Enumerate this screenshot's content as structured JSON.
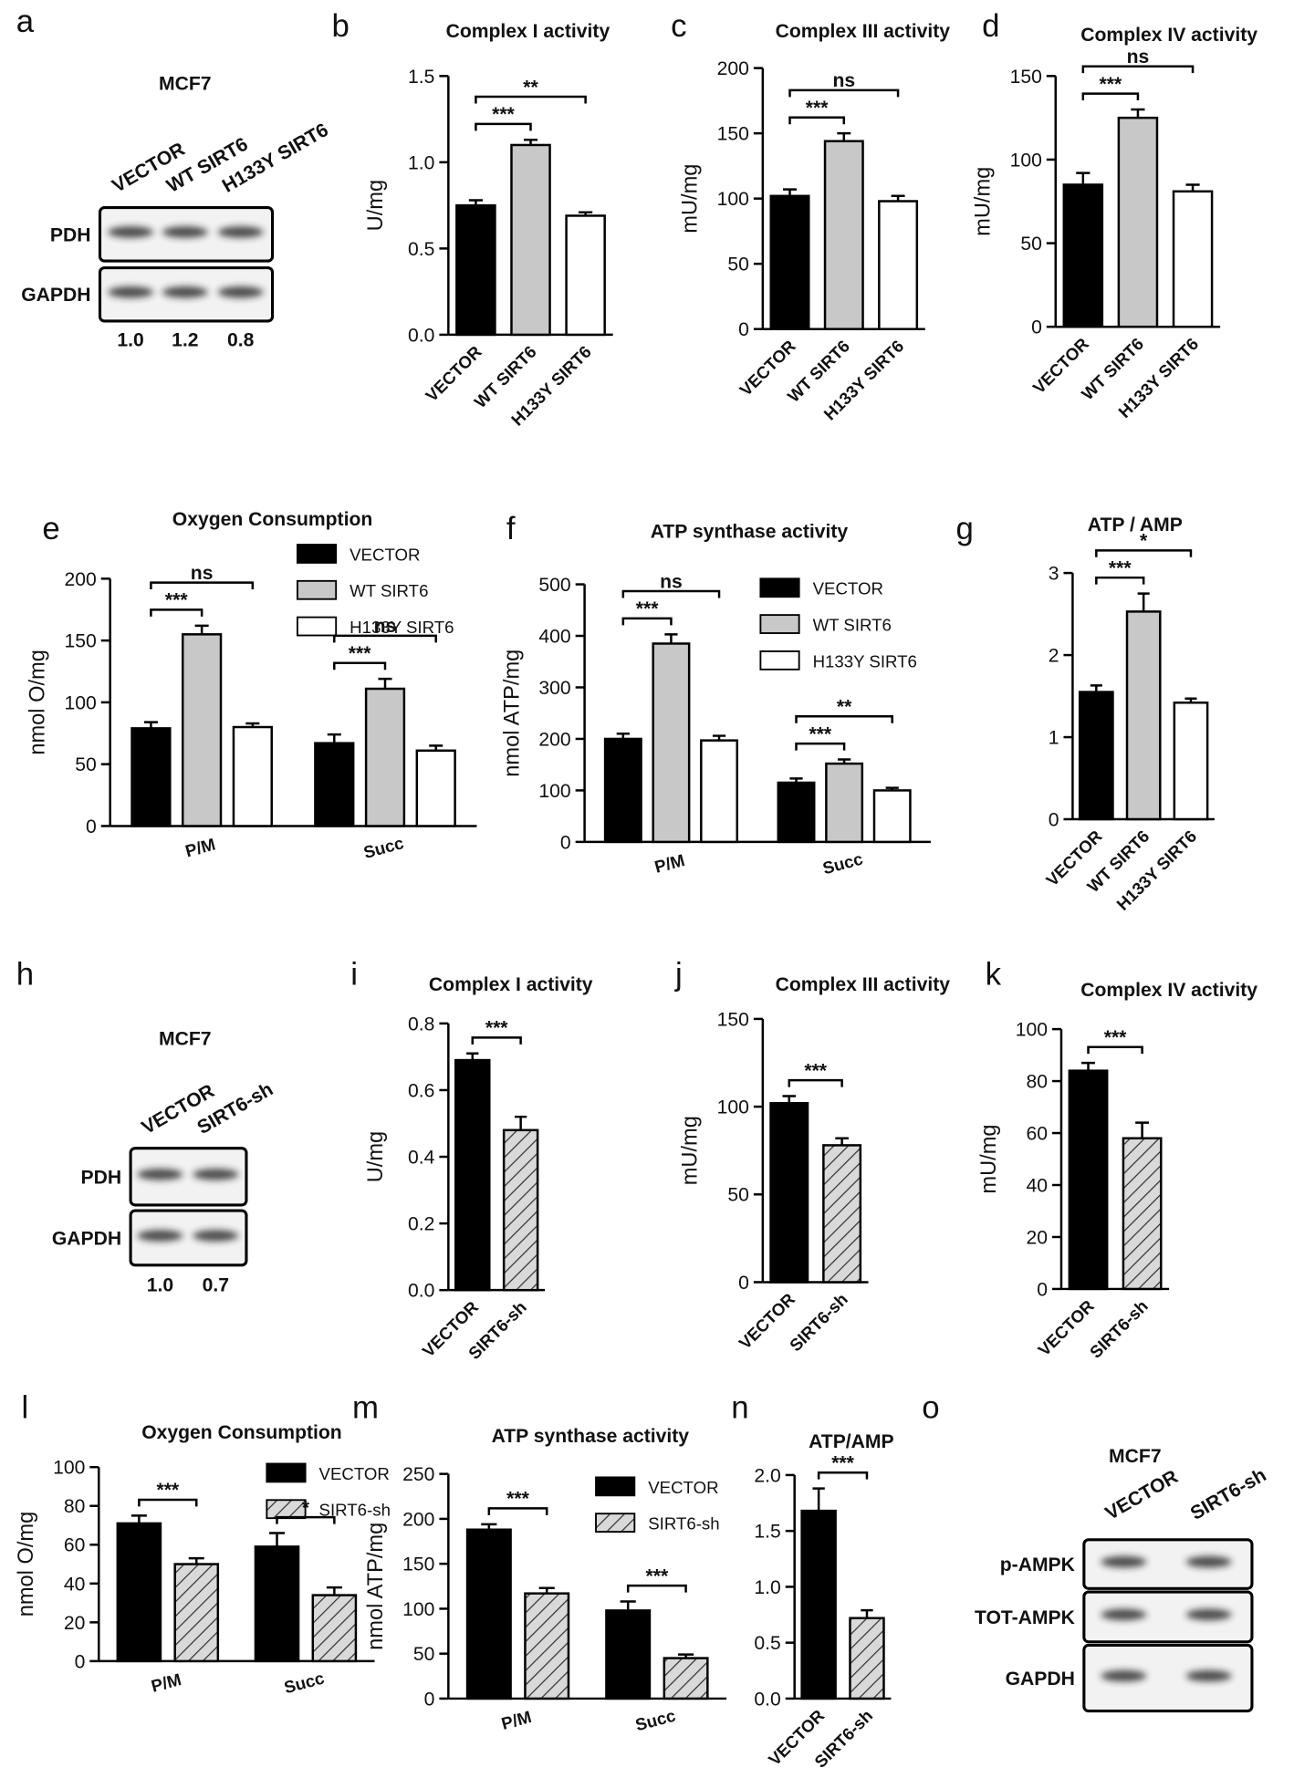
{
  "blots": [
    {
      "panel": "a",
      "title": "MCF7",
      "lanes": [
        "VECTOR",
        "WT SIRT6",
        "H133Y SIRT6"
      ],
      "rows": [
        "PDH",
        "GAPDH"
      ],
      "quantification": [
        "1.0",
        "1.2",
        "0.8"
      ]
    },
    {
      "panel": "h",
      "title": "MCF7",
      "lanes": [
        "VECTOR",
        "SIRT6-sh"
      ],
      "rows": [
        "PDH",
        "GAPDH"
      ],
      "quantification": [
        "1.0",
        "0.7"
      ]
    },
    {
      "panel": "o",
      "title": "MCF7",
      "lanes": [
        "VECTOR",
        "SIRT6-sh"
      ],
      "rows": [
        "p-AMPK",
        "TOT-AMPK",
        "GAPDH"
      ]
    }
  ],
  "chart_data": [
    {
      "panel": "b",
      "type": "bar",
      "title": "Complex I activity",
      "y_label": "U/mg",
      "categories": [
        "VECTOR",
        "WT SIRT6",
        "H133Y SIRT6"
      ],
      "values": [
        0.75,
        1.1,
        0.69
      ],
      "errors": [
        0.03,
        0.03,
        0.02
      ],
      "colors": [
        "#000000",
        "#c8c8c8",
        "#ffffff"
      ],
      "hatch": [
        false,
        false,
        false
      ],
      "ylim": [
        0,
        1.5
      ],
      "yticks": [
        {
          "value": 0,
          "label": "0.0"
        },
        {
          "value": 0.5,
          "label": "0.5"
        },
        {
          "value": 1,
          "label": "1.0"
        },
        {
          "value": 1.5,
          "label": "1.5"
        }
      ],
      "annotations": [
        {
          "text": "***",
          "pair": [
            0,
            1
          ]
        },
        {
          "text": "**",
          "pair": [
            0,
            2
          ]
        }
      ]
    },
    {
      "panel": "c",
      "type": "bar",
      "title": "Complex III activity",
      "y_label": "mU/mg",
      "categories": [
        "VECTOR",
        "WT SIRT6",
        "H133Y SIRT6"
      ],
      "values": [
        102,
        144,
        98
      ],
      "errors": [
        5,
        6,
        4
      ],
      "colors": [
        "#000000",
        "#c8c8c8",
        "#ffffff"
      ],
      "hatch": [
        false,
        false,
        false
      ],
      "ylim": [
        0,
        200
      ],
      "yticks": [
        0,
        50,
        100,
        150,
        200
      ],
      "annotations": [
        {
          "text": "***",
          "pair": [
            0,
            1
          ]
        },
        {
          "text": "ns",
          "pair": [
            0,
            2
          ]
        }
      ]
    },
    {
      "panel": "d",
      "type": "bar",
      "title": "Complex IV activity",
      "y_label": "mU/mg",
      "categories": [
        "VECTOR",
        "WT SIRT6",
        "H133Y SIRT6"
      ],
      "values": [
        85,
        125,
        81
      ],
      "errors": [
        7,
        5,
        4
      ],
      "colors": [
        "#000000",
        "#c8c8c8",
        "#ffffff"
      ],
      "hatch": [
        false,
        false,
        false
      ],
      "ylim": [
        0,
        150
      ],
      "yticks": [
        0,
        50,
        100,
        150
      ],
      "annotations": [
        {
          "text": "***",
          "pair": [
            0,
            1
          ]
        },
        {
          "text": "ns",
          "pair": [
            0,
            2
          ]
        }
      ]
    },
    {
      "panel": "e",
      "type": "grouped_bar",
      "title": "Oxygen Consumption",
      "y_label": "nmol O/mg",
      "categories": [
        "P/M",
        "Succ"
      ],
      "series": [
        {
          "name": "VECTOR",
          "color": "#000000",
          "hatch": false,
          "values": [
            79,
            67
          ],
          "errors": [
            5,
            7
          ]
        },
        {
          "name": "WT SIRT6",
          "color": "#c8c8c8",
          "hatch": false,
          "values": [
            155,
            111
          ],
          "errors": [
            7,
            8
          ]
        },
        {
          "name": "H133Y SIRT6",
          "color": "#ffffff",
          "hatch": false,
          "values": [
            80,
            61
          ],
          "errors": [
            3,
            4
          ]
        }
      ],
      "ylim": [
        0,
        200
      ],
      "yticks": [
        0,
        50,
        100,
        150,
        200
      ],
      "annotations": [
        {
          "text": "***",
          "group": 0,
          "pair": [
            0,
            1
          ]
        },
        {
          "text": "ns",
          "group": 0,
          "pair": [
            0,
            2
          ]
        },
        {
          "text": "***",
          "group": 1,
          "pair": [
            0,
            1
          ]
        },
        {
          "text": "ns",
          "group": 1,
          "pair": [
            0,
            2
          ]
        }
      ]
    },
    {
      "panel": "f",
      "type": "grouped_bar",
      "title": "ATP synthase activity",
      "y_label": "nmol ATP/mg",
      "categories": [
        "P/M",
        "Succ"
      ],
      "series": [
        {
          "name": "VECTOR",
          "color": "#000000",
          "hatch": false,
          "values": [
            200,
            115
          ],
          "errors": [
            10,
            8
          ]
        },
        {
          "name": "WT SIRT6",
          "color": "#c8c8c8",
          "hatch": false,
          "values": [
            385,
            152
          ],
          "errors": [
            18,
            8
          ]
        },
        {
          "name": "H133Y SIRT6",
          "color": "#ffffff",
          "hatch": false,
          "values": [
            197,
            100
          ],
          "errors": [
            9,
            5
          ]
        }
      ],
      "ylim": [
        0,
        500
      ],
      "yticks": [
        0,
        100,
        200,
        300,
        400,
        500
      ],
      "annotations": [
        {
          "text": "***",
          "group": 0,
          "pair": [
            0,
            1
          ]
        },
        {
          "text": "ns",
          "group": 0,
          "pair": [
            0,
            2
          ]
        },
        {
          "text": "***",
          "group": 1,
          "pair": [
            0,
            1
          ]
        },
        {
          "text": "**",
          "group": 1,
          "pair": [
            0,
            2
          ]
        }
      ]
    },
    {
      "panel": "g",
      "type": "bar",
      "title": "ATP / AMP",
      "categories": [
        "VECTOR",
        "WT SIRT6",
        "H133Y SIRT6"
      ],
      "values": [
        1.55,
        2.53,
        1.42
      ],
      "errors": [
        0.08,
        0.22,
        0.05
      ],
      "colors": [
        "#000000",
        "#c8c8c8",
        "#ffffff"
      ],
      "hatch": [
        false,
        false,
        false
      ],
      "ylim": [
        0,
        3
      ],
      "yticks": [
        0,
        1,
        2,
        3
      ],
      "annotations": [
        {
          "text": "***",
          "pair": [
            0,
            1
          ]
        },
        {
          "text": "*",
          "pair": [
            0,
            2
          ]
        }
      ]
    },
    {
      "panel": "i",
      "type": "bar",
      "title": "Complex I activity",
      "y_label": "U/mg",
      "categories": [
        "VECTOR",
        "SIRT6-sh"
      ],
      "values": [
        0.69,
        0.48
      ],
      "errors": [
        0.02,
        0.04
      ],
      "colors": [
        "#000000",
        "#d9d9d9"
      ],
      "hatch": [
        false,
        true
      ],
      "ylim": [
        0,
        0.8
      ],
      "yticks": [
        {
          "value": 0,
          "label": "0.0"
        },
        0.2,
        0.4,
        0.6,
        0.8
      ],
      "annotations": [
        {
          "text": "***",
          "pair": [
            0,
            1
          ]
        }
      ]
    },
    {
      "panel": "j",
      "type": "bar",
      "title": "Complex III activity",
      "y_label": "mU/mg",
      "categories": [
        "VECTOR",
        "SIRT6-sh"
      ],
      "values": [
        102,
        78
      ],
      "errors": [
        4,
        4
      ],
      "colors": [
        "#000000",
        "#d9d9d9"
      ],
      "hatch": [
        false,
        true
      ],
      "ylim": [
        0,
        150
      ],
      "yticks": [
        0,
        50,
        100,
        150
      ],
      "annotations": [
        {
          "text": "***",
          "pair": [
            0,
            1
          ]
        }
      ]
    },
    {
      "panel": "k",
      "type": "bar",
      "title": "Complex IV activity",
      "y_label": "mU/mg",
      "categories": [
        "VECTOR",
        "SIRT6-sh"
      ],
      "values": [
        84,
        58
      ],
      "errors": [
        3,
        6
      ],
      "colors": [
        "#000000",
        "#d9d9d9"
      ],
      "hatch": [
        false,
        true
      ],
      "ylim": [
        0,
        100
      ],
      "yticks": [
        0,
        20,
        40,
        60,
        80,
        100
      ],
      "annotations": [
        {
          "text": "***",
          "pair": [
            0,
            1
          ]
        }
      ]
    },
    {
      "panel": "l",
      "type": "grouped_bar",
      "title": "Oxygen Consumption",
      "y_label": "nmol O/mg",
      "categories": [
        "P/M",
        "Succ"
      ],
      "series": [
        {
          "name": "VECTOR",
          "color": "#000000",
          "hatch": false,
          "values": [
            71,
            59
          ],
          "errors": [
            4,
            7
          ]
        },
        {
          "name": "SIRT6-sh",
          "color": "#d9d9d9",
          "hatch": true,
          "values": [
            50,
            34
          ],
          "errors": [
            3,
            4
          ]
        }
      ],
      "ylim": [
        0,
        100
      ],
      "yticks": [
        0,
        20,
        40,
        60,
        80,
        100
      ],
      "annotations": [
        {
          "text": "***",
          "group": 0,
          "pair": [
            0,
            1
          ]
        },
        {
          "text": "*",
          "group": 1,
          "pair": [
            0,
            1
          ]
        }
      ]
    },
    {
      "panel": "m",
      "type": "grouped_bar",
      "title": "ATP synthase activity",
      "y_label": "nmol ATP/mg",
      "categories": [
        "P/M",
        "Succ"
      ],
      "series": [
        {
          "name": "VECTOR",
          "color": "#000000",
          "hatch": false,
          "values": [
            188,
            98
          ],
          "errors": [
            6,
            10
          ]
        },
        {
          "name": "SIRT6-sh",
          "color": "#d9d9d9",
          "hatch": true,
          "values": [
            117,
            45
          ],
          "errors": [
            6,
            4
          ]
        }
      ],
      "ylim": [
        0,
        250
      ],
      "yticks": [
        0,
        50,
        100,
        150,
        200,
        250
      ],
      "annotations": [
        {
          "text": "***",
          "group": 0,
          "pair": [
            0,
            1
          ]
        },
        {
          "text": "***",
          "group": 1,
          "pair": [
            0,
            1
          ]
        }
      ]
    },
    {
      "panel": "n",
      "type": "bar",
      "title": "ATP/AMP",
      "categories": [
        "VECTOR",
        "SIRT6-sh"
      ],
      "values": [
        1.68,
        0.72
      ],
      "errors": [
        0.2,
        0.07
      ],
      "colors": [
        "#000000",
        "#d9d9d9"
      ],
      "hatch": [
        false,
        true
      ],
      "ylim": [
        0,
        2
      ],
      "yticks": [
        {
          "value": 0,
          "label": "0.0"
        },
        {
          "value": 0.5,
          "label": "0.5"
        },
        {
          "value": 1,
          "label": "1.0"
        },
        {
          "value": 1.5,
          "label": "1.5"
        },
        {
          "value": 2,
          "label": "2.0"
        }
      ],
      "annotations": [
        {
          "text": "***",
          "pair": [
            0,
            1
          ]
        }
      ]
    }
  ]
}
